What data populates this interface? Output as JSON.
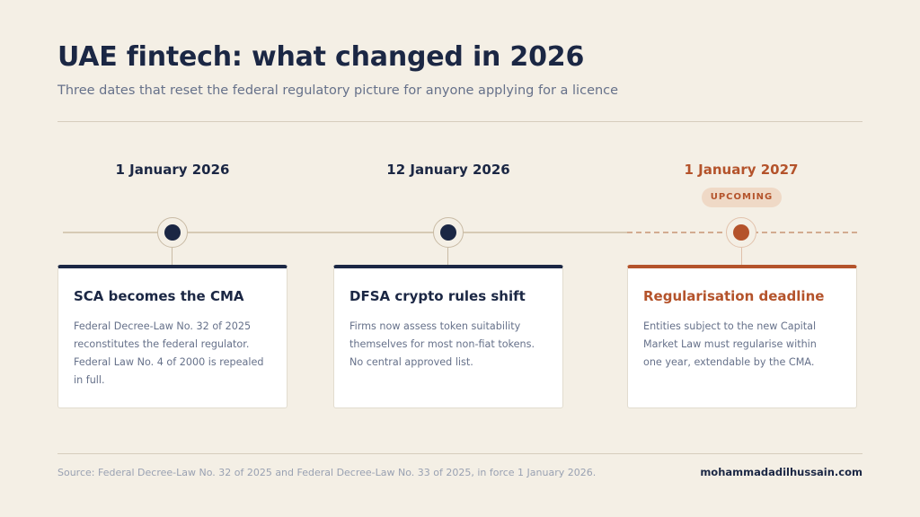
{
  "header": {
    "title": "UAE fintech: what changed in 2026",
    "subtitle": "Three dates that reset the federal regulatory picture for anyone applying for a licence"
  },
  "milestones": [
    {
      "date": "1 January 2026",
      "title": "SCA becomes the CMA",
      "body": "Federal Decree-Law No. 32 of 2025 reconstitutes the federal regulator. Federal Law No. 4 of 2000 is repealed in full.",
      "status": "past"
    },
    {
      "date": "12 January 2026",
      "title": "DFSA crypto rules shift",
      "body": "Firms now assess token suitability themselves for most non-fiat tokens. No central approved list.",
      "status": "past"
    },
    {
      "date": "1 January 2027",
      "badge": "UPCOMING",
      "title": "Regularisation deadline",
      "body": "Entities subject to the new Capital Market Law must regularise within one year, extendable by the CMA.",
      "status": "upcoming"
    }
  ],
  "colors": {
    "navy": "#1b2744",
    "accent": "#b4532b",
    "background": "#f4efe5"
  },
  "footer": {
    "source": "Source: Federal Decree-Law No. 32 of 2025 and Federal Decree-Law No. 33 of 2025, in force 1 January 2026.",
    "brand": "mohammadadilhussain.com"
  }
}
